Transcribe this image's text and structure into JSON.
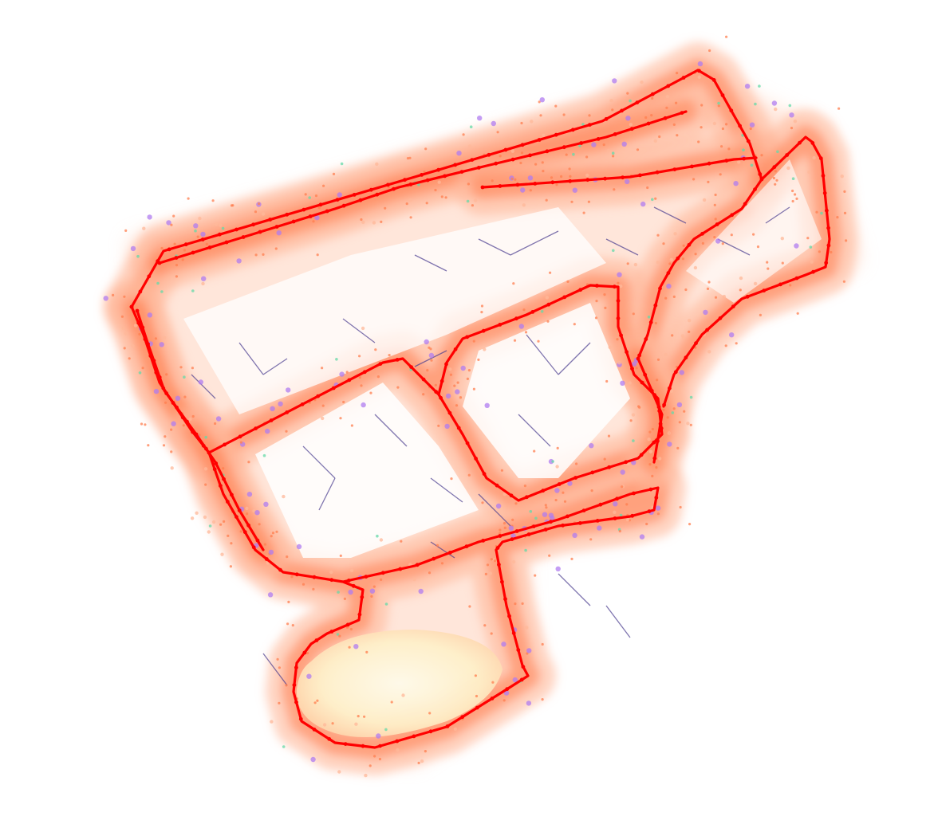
{
  "map": {
    "type": "lidar-point-cloud-map",
    "background": "#ffffff",
    "trajectory_color": "#ff0000",
    "point_colors": {
      "dense": "#ff7f50",
      "halo": "#ffb89a",
      "tree": "#b07cf0",
      "ground_green": "#66d9a8",
      "open_area": "#fff0c8",
      "edge": "#4a3d8f"
    }
  }
}
